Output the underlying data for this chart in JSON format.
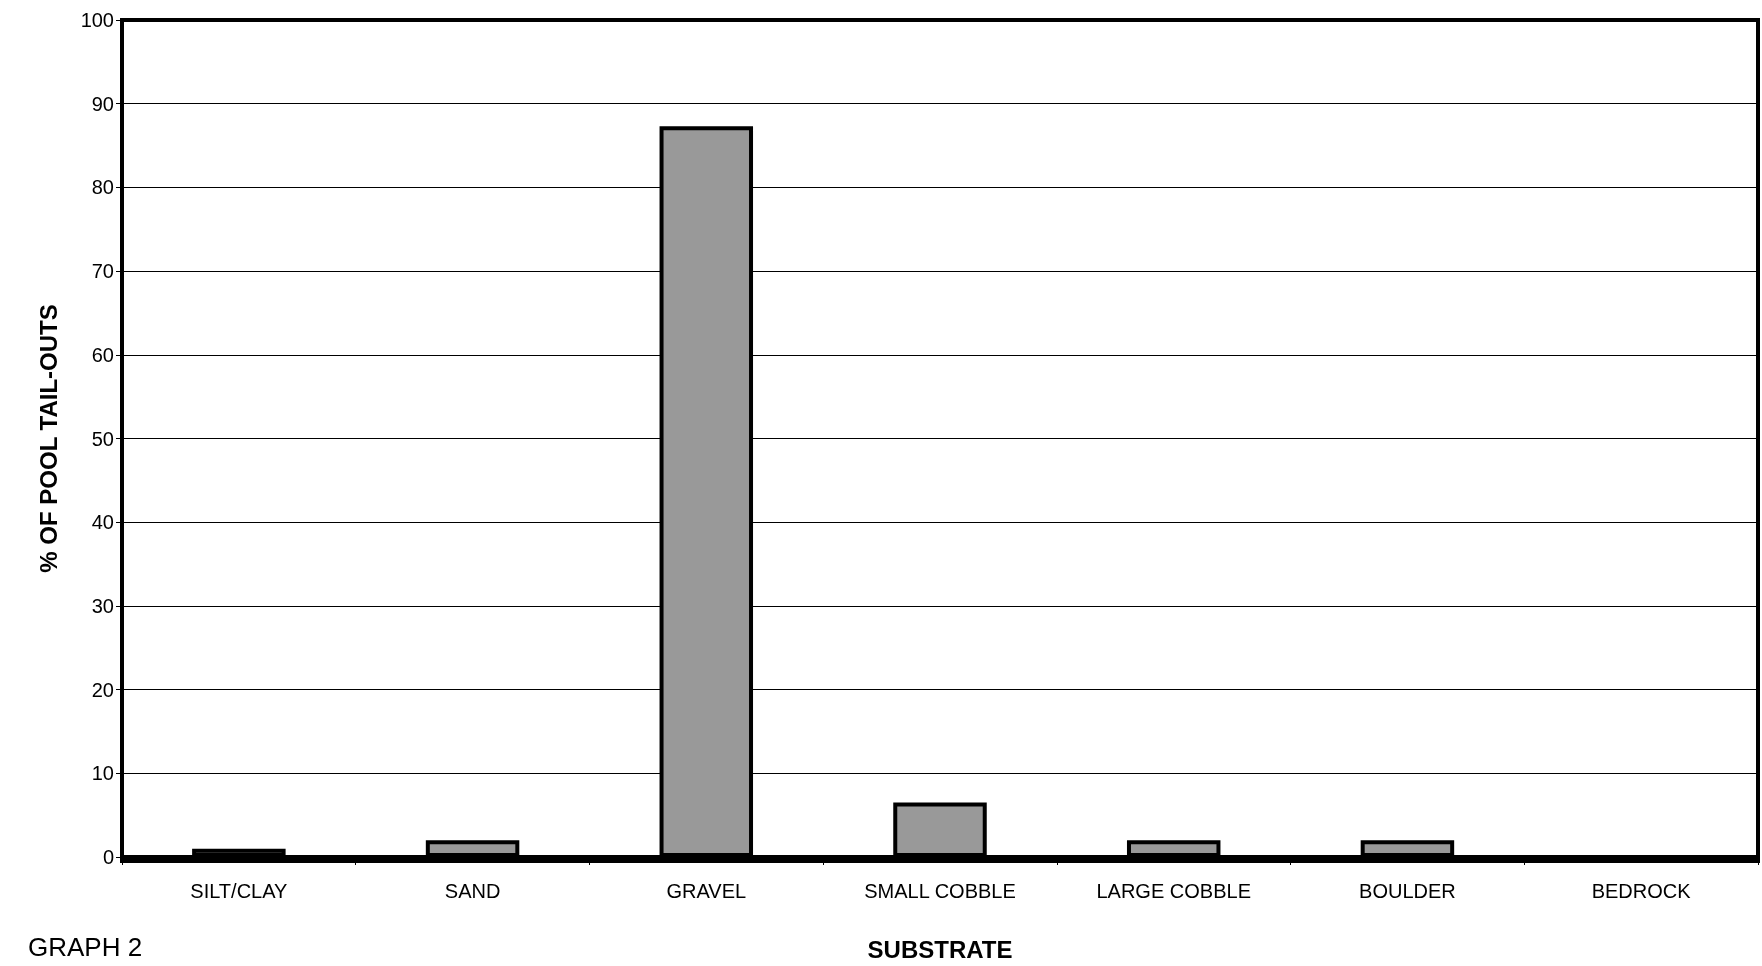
{
  "chart_data": {
    "type": "bar",
    "xlabel": "SUBSTRATE",
    "ylabel": "% OF POOL TAIL-OUTS",
    "categories": [
      "SILT/CLAY",
      "SAND",
      "GRAVEL",
      "SMALL COBBLE",
      "LARGE COBBLE",
      "BOULDER",
      "BEDROCK"
    ],
    "values": [
      1,
      2,
      87.3,
      6.5,
      2,
      2,
      0
    ],
    "color": "#999999",
    "ylim": [
      0,
      100
    ],
    "yticks": [
      0,
      10,
      20,
      30,
      40,
      50,
      60,
      70,
      80,
      90,
      100
    ],
    "grid": "y",
    "annotations": [
      "GRAPH 2"
    ]
  }
}
